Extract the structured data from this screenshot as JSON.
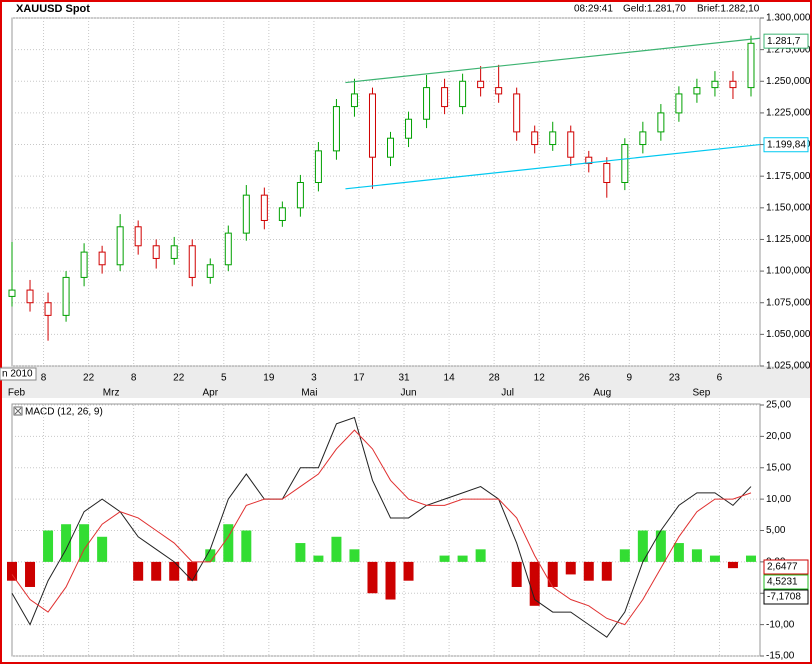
{
  "chart_data": [
    {
      "type": "ohlc",
      "title": "XAUUSD Spot",
      "quote": [
        "08:29:41",
        "Geld:1.281,70",
        "Brief:1.282,10"
      ],
      "year_label": "n 2010",
      "x": [
        0,
        4,
        8,
        12,
        16,
        20,
        24,
        28,
        32,
        36,
        40,
        44,
        48,
        52,
        56,
        60,
        64,
        68,
        72,
        76,
        80,
        84,
        88,
        92,
        96,
        100,
        104,
        108,
        112,
        116,
        120,
        124,
        128,
        132,
        136,
        140,
        144,
        148,
        152,
        156,
        160,
        164
      ],
      "open": [
        1080,
        1085,
        1075,
        1065,
        1095,
        1115,
        1105,
        1135,
        1120,
        1110,
        1120,
        1095,
        1105,
        1130,
        1160,
        1140,
        1150,
        1170,
        1195,
        1230,
        1240,
        1190,
        1205,
        1220,
        1245,
        1230,
        1250,
        1245,
        1240,
        1210,
        1200,
        1210,
        1190,
        1185,
        1170,
        1200,
        1210,
        1225,
        1240,
        1245,
        1250,
        1245
      ],
      "high": [
        1123,
        1093,
        1083,
        1100,
        1122,
        1120,
        1145,
        1140,
        1125,
        1127,
        1125,
        1110,
        1136,
        1168,
        1166,
        1155,
        1176,
        1202,
        1236,
        1252,
        1245,
        1210,
        1226,
        1255,
        1252,
        1256,
        1262,
        1263,
        1245,
        1215,
        1218,
        1215,
        1195,
        1190,
        1205,
        1218,
        1232,
        1246,
        1252,
        1258,
        1258,
        1286
      ],
      "low": [
        1072,
        1068,
        1045,
        1060,
        1088,
        1098,
        1100,
        1113,
        1102,
        1105,
        1088,
        1090,
        1100,
        1124,
        1133,
        1135,
        1143,
        1163,
        1188,
        1222,
        1165,
        1183,
        1198,
        1213,
        1224,
        1224,
        1238,
        1233,
        1203,
        1193,
        1195,
        1183,
        1178,
        1158,
        1164,
        1193,
        1203,
        1218,
        1233,
        1238,
        1236,
        1238
      ],
      "close": [
        1085,
        1075,
        1065,
        1095,
        1115,
        1105,
        1135,
        1120,
        1110,
        1120,
        1095,
        1105,
        1130,
        1160,
        1140,
        1150,
        1170,
        1195,
        1230,
        1240,
        1190,
        1205,
        1220,
        1245,
        1230,
        1250,
        1245,
        1240,
        1210,
        1200,
        1210,
        1190,
        1185,
        1170,
        1200,
        1210,
        1225,
        1240,
        1245,
        1250,
        1245,
        1280
      ],
      "up_color": "#00a000",
      "down_color": "#d00000",
      "xlim": [
        0,
        166
      ],
      "xticks": [
        {
          "value": 7,
          "label": "8"
        },
        {
          "value": 17,
          "label": "22"
        },
        {
          "value": 27,
          "label": "8"
        },
        {
          "value": 37,
          "label": "22"
        },
        {
          "value": 47,
          "label": "5"
        },
        {
          "value": 57,
          "label": "19"
        },
        {
          "value": 67,
          "label": "3"
        },
        {
          "value": 77,
          "label": "17"
        },
        {
          "value": 87,
          "label": "31"
        },
        {
          "value": 97,
          "label": "14"
        },
        {
          "value": 107,
          "label": "28"
        },
        {
          "value": 117,
          "label": "12"
        },
        {
          "value": 127,
          "label": "26"
        },
        {
          "value": 137,
          "label": "9"
        },
        {
          "value": 147,
          "label": "23"
        },
        {
          "value": 157,
          "label": "6"
        }
      ],
      "month_ticks": [
        {
          "value": 1,
          "label": "Feb"
        },
        {
          "value": 22,
          "label": "Mrz"
        },
        {
          "value": 44,
          "label": "Apr"
        },
        {
          "value": 66,
          "label": "Mai"
        },
        {
          "value": 88,
          "label": "Jun"
        },
        {
          "value": 110,
          "label": "Jul"
        },
        {
          "value": 131,
          "label": "Aug"
        },
        {
          "value": 153,
          "label": "Sep"
        }
      ],
      "ylim": [
        1025,
        1300
      ],
      "yticks": [
        {
          "value": 1025,
          "label": "1.025,000"
        },
        {
          "value": 1050,
          "label": "1.050,000"
        },
        {
          "value": 1075,
          "label": "1.075,000"
        },
        {
          "value": 1100,
          "label": "1.100,000"
        },
        {
          "value": 1125,
          "label": "1.125,000"
        },
        {
          "value": 1150,
          "label": "1.150,000"
        },
        {
          "value": 1175,
          "label": "1.175,000"
        },
        {
          "value": 1200,
          "label": "1.200,000"
        },
        {
          "value": 1225,
          "label": "1.225,000"
        },
        {
          "value": 1250,
          "label": "1.250,000"
        },
        {
          "value": 1275,
          "label": "1.275,000"
        },
        {
          "value": 1300,
          "label": "1.300,000"
        }
      ],
      "grid": true,
      "trendlines": [
        {
          "color": "#3cb371",
          "x": [
            74,
            166
          ],
          "values": [
            1249,
            1284
          ]
        },
        {
          "color": "#00c8f0",
          "x": [
            74,
            166
          ],
          "values": [
            1165,
            1200
          ]
        }
      ],
      "price_labels": [
        {
          "label": "1.281,7",
          "value": 1281.7,
          "color": "#3cb371"
        },
        {
          "label": "1.199,84",
          "value": 1199.84,
          "color": "#00c8f0"
        }
      ]
    },
    {
      "type": "macd",
      "title": "MACD (12, 26, 9)",
      "x": [
        0,
        4,
        8,
        12,
        16,
        20,
        24,
        28,
        32,
        36,
        40,
        44,
        48,
        52,
        56,
        60,
        64,
        68,
        72,
        76,
        80,
        84,
        88,
        92,
        96,
        100,
        104,
        108,
        112,
        116,
        120,
        124,
        128,
        132,
        136,
        140,
        144,
        148,
        152,
        156,
        160,
        164
      ],
      "lines": [
        {
          "color": "#222222",
          "values": [
            -5,
            -10,
            -3,
            2,
            8,
            10,
            8,
            4,
            2,
            0,
            -3,
            2,
            10,
            14,
            10,
            10,
            15,
            15,
            22,
            23,
            13,
            7,
            7,
            9,
            10,
            11,
            12,
            10,
            3,
            -6,
            -8,
            -8,
            -10,
            -12,
            -8,
            0,
            5,
            9,
            11,
            11,
            9,
            12
          ]
        },
        {
          "color": "#e03030",
          "values": [
            -2,
            -6,
            -8,
            -4,
            2,
            6,
            8,
            7,
            5,
            3,
            0,
            0,
            4,
            9,
            10,
            10,
            12,
            14,
            18,
            21,
            18,
            13,
            10,
            9,
            9,
            10,
            10,
            10,
            7,
            1,
            -4,
            -6,
            -7,
            -9,
            -10,
            -6,
            -1,
            4,
            8,
            10,
            10,
            11
          ]
        }
      ],
      "histogram": {
        "up_color": "#33dd33",
        "down_color": "#cc0000",
        "values": [
          -3,
          -4,
          5,
          6,
          6,
          4,
          0,
          -3,
          -3,
          -3,
          -3,
          2,
          6,
          5,
          0,
          0,
          3,
          1,
          4,
          2,
          -5,
          -6,
          -3,
          0,
          1,
          1,
          2,
          0,
          -4,
          -7,
          -4,
          -2,
          -3,
          -3,
          2,
          5,
          5,
          3,
          2,
          1,
          -1,
          1
        ]
      },
      "xlim": [
        0,
        166
      ],
      "ylim": [
        -15,
        25
      ],
      "yticks": [
        {
          "value": -15,
          "label": "-15,00"
        },
        {
          "value": -10,
          "label": "-10,00"
        },
        {
          "value": -5,
          "label": "-5,00"
        },
        {
          "value": 0,
          "label": "0,00"
        },
        {
          "value": 5,
          "label": "5,00"
        },
        {
          "value": 10,
          "label": "10,00"
        },
        {
          "value": 15,
          "label": "15,00"
        },
        {
          "value": 20,
          "label": "20,00"
        },
        {
          "value": 25,
          "label": "25,00"
        }
      ],
      "grid": true,
      "end_labels": [
        {
          "label": "2,6477",
          "color": "#cc0000"
        },
        {
          "label": "4,5231",
          "color": "#22bb22"
        },
        {
          "label": "-7,1708",
          "color": "#000000"
        }
      ]
    }
  ]
}
